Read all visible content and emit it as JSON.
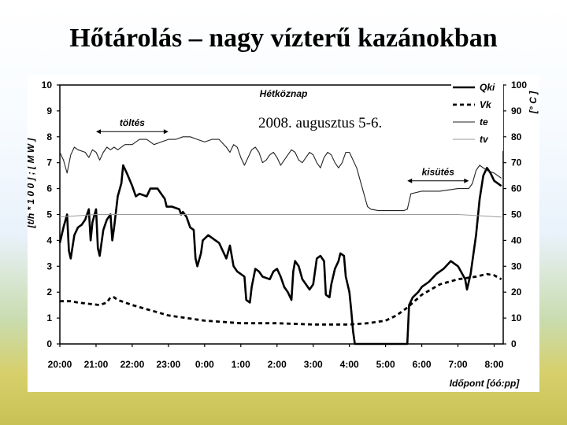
{
  "slide": {
    "title": "Hőtárolás – nagy vízterű kazánokban",
    "date_note": "2008. augusztus 5-6."
  },
  "chart_data": {
    "type": "line",
    "title": "Hétköznap",
    "xlabel": "Időpont [óó:pp]",
    "ylabel_left": "[t/h * 1 0 0 ] ; [ M W ]",
    "ylabel_right": "[° C ]",
    "x_range_hours": [
      20,
      32.25
    ],
    "ylim_left": [
      0,
      10
    ],
    "ylim_right": [
      0,
      100
    ],
    "x_tick_labels": [
      "20:00",
      "21:00",
      "22:00",
      "23:00",
      "0:00",
      "1:00",
      "2:00",
      "3:00",
      "4:00",
      "5:00",
      "6:00",
      "7:00",
      "8:00"
    ],
    "y_left_ticks": [
      "0",
      "1",
      "2",
      "3",
      "4",
      "5",
      "6",
      "7",
      "8",
      "9",
      "10"
    ],
    "y_right_ticks": [
      "0",
      "10",
      "20",
      "30",
      "40",
      "50",
      "60",
      "70",
      "80",
      "90",
      "100"
    ],
    "annotations": [
      {
        "text": "töltés",
        "x_from": 21.0,
        "x_to": 23.0,
        "y": 8.2
      },
      {
        "text": "kisütés",
        "x_from": 29.6,
        "x_to": 31.3,
        "y": 6.3
      }
    ],
    "series": [
      {
        "name": "Qki",
        "axis": "left",
        "style": "solid-bold",
        "points": [
          [
            20.0,
            3.9
          ],
          [
            20.1,
            4.5
          ],
          [
            20.2,
            5.0
          ],
          [
            20.25,
            3.6
          ],
          [
            20.3,
            3.3
          ],
          [
            20.4,
            4.2
          ],
          [
            20.5,
            4.5
          ],
          [
            20.6,
            4.6
          ],
          [
            20.7,
            4.8
          ],
          [
            20.8,
            5.2
          ],
          [
            20.85,
            4.0
          ],
          [
            20.9,
            4.7
          ],
          [
            21.0,
            5.2
          ],
          [
            21.05,
            3.7
          ],
          [
            21.1,
            3.4
          ],
          [
            21.2,
            4.4
          ],
          [
            21.3,
            4.8
          ],
          [
            21.4,
            5.0
          ],
          [
            21.45,
            4.0
          ],
          [
            21.5,
            4.5
          ],
          [
            21.6,
            5.7
          ],
          [
            21.7,
            6.2
          ],
          [
            21.75,
            6.9
          ],
          [
            21.85,
            6.6
          ],
          [
            22.0,
            6.1
          ],
          [
            22.1,
            5.7
          ],
          [
            22.2,
            5.8
          ],
          [
            22.4,
            5.7
          ],
          [
            22.5,
            6.0
          ],
          [
            22.7,
            6.0
          ],
          [
            22.8,
            5.8
          ],
          [
            22.9,
            5.6
          ],
          [
            22.95,
            5.3
          ],
          [
            23.1,
            5.3
          ],
          [
            23.3,
            5.2
          ],
          [
            23.35,
            5.0
          ],
          [
            23.4,
            5.1
          ],
          [
            23.5,
            4.9
          ],
          [
            23.6,
            4.5
          ],
          [
            23.7,
            4.4
          ],
          [
            23.75,
            3.3
          ],
          [
            23.8,
            3.0
          ],
          [
            23.9,
            3.5
          ],
          [
            23.95,
            4.0
          ],
          [
            24.1,
            4.2
          ],
          [
            24.3,
            4.0
          ],
          [
            24.4,
            3.9
          ],
          [
            24.5,
            3.6
          ],
          [
            24.6,
            3.3
          ],
          [
            24.7,
            3.8
          ],
          [
            24.8,
            3.0
          ],
          [
            24.9,
            2.8
          ],
          [
            25.0,
            2.7
          ],
          [
            25.1,
            2.6
          ],
          [
            25.15,
            1.7
          ],
          [
            25.25,
            1.6
          ],
          [
            25.3,
            2.2
          ],
          [
            25.4,
            2.9
          ],
          [
            25.5,
            2.8
          ],
          [
            25.6,
            2.6
          ],
          [
            25.8,
            2.5
          ],
          [
            25.9,
            2.8
          ],
          [
            26.0,
            2.9
          ],
          [
            26.1,
            2.6
          ],
          [
            26.2,
            2.2
          ],
          [
            26.3,
            2.0
          ],
          [
            26.4,
            1.7
          ],
          [
            26.45,
            2.8
          ],
          [
            26.5,
            3.2
          ],
          [
            26.6,
            3.0
          ],
          [
            26.7,
            2.5
          ],
          [
            26.8,
            2.3
          ],
          [
            26.9,
            2.1
          ],
          [
            27.0,
            2.3
          ],
          [
            27.1,
            3.3
          ],
          [
            27.2,
            3.4
          ],
          [
            27.3,
            3.2
          ],
          [
            27.35,
            1.9
          ],
          [
            27.45,
            1.8
          ],
          [
            27.5,
            2.3
          ],
          [
            27.6,
            2.9
          ],
          [
            27.7,
            3.2
          ],
          [
            27.75,
            3.5
          ],
          [
            27.85,
            3.4
          ],
          [
            27.9,
            2.6
          ],
          [
            28.0,
            2.0
          ],
          [
            28.05,
            1.3
          ],
          [
            28.1,
            0.5
          ],
          [
            28.15,
            0.0
          ],
          [
            29.6,
            0.0
          ],
          [
            29.65,
            1.5
          ],
          [
            29.75,
            1.8
          ],
          [
            29.9,
            2.0
          ],
          [
            30.0,
            2.2
          ],
          [
            30.2,
            2.4
          ],
          [
            30.4,
            2.7
          ],
          [
            30.6,
            2.9
          ],
          [
            30.8,
            3.2
          ],
          [
            31.0,
            3.0
          ],
          [
            31.2,
            2.5
          ],
          [
            31.25,
            2.1
          ],
          [
            31.35,
            2.7
          ],
          [
            31.5,
            4.2
          ],
          [
            31.6,
            5.6
          ],
          [
            31.7,
            6.5
          ],
          [
            31.8,
            6.8
          ],
          [
            31.9,
            6.6
          ],
          [
            32.0,
            6.3
          ],
          [
            32.2,
            6.1
          ]
        ]
      },
      {
        "name": "Vk",
        "axis": "left",
        "style": "dashed-bold",
        "points": [
          [
            20.0,
            1.65
          ],
          [
            20.3,
            1.65
          ],
          [
            20.5,
            1.6
          ],
          [
            20.8,
            1.55
          ],
          [
            21.1,
            1.5
          ],
          [
            21.3,
            1.6
          ],
          [
            21.4,
            1.8
          ],
          [
            21.5,
            1.8
          ],
          [
            21.6,
            1.7
          ],
          [
            22.0,
            1.5
          ],
          [
            22.5,
            1.3
          ],
          [
            23.0,
            1.1
          ],
          [
            23.5,
            1.0
          ],
          [
            24.0,
            0.9
          ],
          [
            24.5,
            0.85
          ],
          [
            25.0,
            0.8
          ],
          [
            26.0,
            0.8
          ],
          [
            27.0,
            0.75
          ],
          [
            28.0,
            0.75
          ],
          [
            28.5,
            0.8
          ],
          [
            29.0,
            0.9
          ],
          [
            29.3,
            1.1
          ],
          [
            29.6,
            1.4
          ],
          [
            30.0,
            1.9
          ],
          [
            30.5,
            2.3
          ],
          [
            31.0,
            2.5
          ],
          [
            31.5,
            2.6
          ],
          [
            31.8,
            2.7
          ],
          [
            32.0,
            2.65
          ],
          [
            32.2,
            2.5
          ]
        ]
      },
      {
        "name": "te",
        "axis": "right",
        "style": "solid-thin",
        "points": [
          [
            20.0,
            74
          ],
          [
            20.1,
            71
          ],
          [
            20.2,
            66
          ],
          [
            20.3,
            73
          ],
          [
            20.4,
            76
          ],
          [
            20.5,
            75
          ],
          [
            20.7,
            74
          ],
          [
            20.8,
            72
          ],
          [
            20.9,
            75
          ],
          [
            21.0,
            74
          ],
          [
            21.1,
            71
          ],
          [
            21.2,
            74
          ],
          [
            21.3,
            76
          ],
          [
            21.4,
            75
          ],
          [
            21.5,
            76
          ],
          [
            21.6,
            75
          ],
          [
            21.8,
            77
          ],
          [
            22.0,
            77
          ],
          [
            22.2,
            79
          ],
          [
            22.4,
            79
          ],
          [
            22.6,
            77
          ],
          [
            22.8,
            78
          ],
          [
            23.0,
            79
          ],
          [
            23.2,
            79
          ],
          [
            23.4,
            80
          ],
          [
            23.6,
            80
          ],
          [
            23.8,
            79
          ],
          [
            24.0,
            78
          ],
          [
            24.2,
            79
          ],
          [
            24.4,
            79
          ],
          [
            24.6,
            76
          ],
          [
            24.7,
            74
          ],
          [
            24.8,
            77
          ],
          [
            24.9,
            76
          ],
          [
            25.0,
            72
          ],
          [
            25.1,
            69
          ],
          [
            25.2,
            72
          ],
          [
            25.3,
            75
          ],
          [
            25.4,
            76
          ],
          [
            25.5,
            74
          ],
          [
            25.6,
            70
          ],
          [
            25.7,
            71
          ],
          [
            25.8,
            73
          ],
          [
            25.9,
            74
          ],
          [
            26.0,
            72
          ],
          [
            26.1,
            69
          ],
          [
            26.2,
            71
          ],
          [
            26.3,
            73
          ],
          [
            26.4,
            75
          ],
          [
            26.5,
            74
          ],
          [
            26.6,
            71
          ],
          [
            26.7,
            70
          ],
          [
            26.8,
            72
          ],
          [
            26.9,
            74
          ],
          [
            27.0,
            73
          ],
          [
            27.1,
            70
          ],
          [
            27.2,
            68
          ],
          [
            27.3,
            72
          ],
          [
            27.4,
            74
          ],
          [
            27.5,
            73
          ],
          [
            27.6,
            70
          ],
          [
            27.7,
            68
          ],
          [
            27.8,
            70
          ],
          [
            27.9,
            74
          ],
          [
            28.0,
            74
          ],
          [
            28.2,
            68
          ],
          [
            28.4,
            58
          ],
          [
            28.5,
            53
          ],
          [
            28.6,
            52
          ],
          [
            28.8,
            51.5
          ],
          [
            29.5,
            51.5
          ],
          [
            29.6,
            52
          ],
          [
            29.7,
            58
          ],
          [
            30.0,
            59
          ],
          [
            30.5,
            59
          ],
          [
            31.0,
            60
          ],
          [
            31.2,
            60
          ],
          [
            31.3,
            60
          ],
          [
            31.4,
            62
          ],
          [
            31.5,
            67
          ],
          [
            31.6,
            69
          ],
          [
            31.8,
            67
          ],
          [
            32.0,
            66
          ],
          [
            32.2,
            64
          ]
        ]
      },
      {
        "name": "tv",
        "axis": "right",
        "style": "solid-faint",
        "points": [
          [
            20.0,
            49
          ],
          [
            21.0,
            50
          ],
          [
            22.0,
            50
          ],
          [
            23.0,
            50
          ],
          [
            24.0,
            50
          ],
          [
            25.0,
            50
          ],
          [
            26.0,
            50
          ],
          [
            27.0,
            50
          ],
          [
            28.0,
            50
          ],
          [
            29.0,
            50
          ],
          [
            30.0,
            50
          ],
          [
            31.0,
            50
          ],
          [
            32.2,
            49
          ]
        ]
      }
    ]
  }
}
